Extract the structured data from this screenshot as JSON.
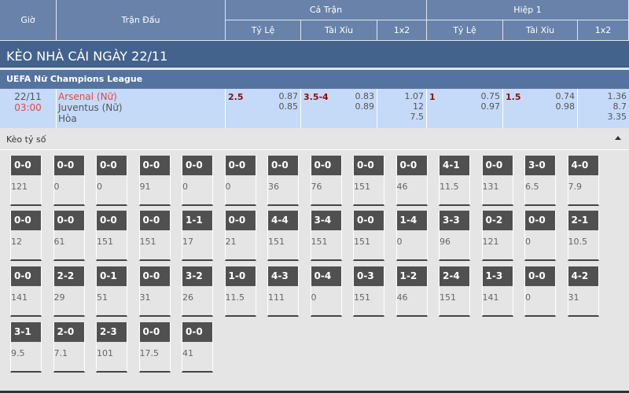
{
  "header": {
    "gio": "Giờ",
    "tran_dau": "Trận Đấu",
    "ca_tran": "Cả Trận",
    "hiep1": "Hiệp 1",
    "ty_le": "Tỷ Lệ",
    "tai_xiu": "Tài Xỉu",
    "x12": "1x2"
  },
  "banner": "KÈO NHÀ CÁI NGÀY 22/11",
  "league": "UEFA Nữ Champions League",
  "match": {
    "date": "22/11",
    "time": "03:00",
    "home": "Arsenal (Nữ)",
    "away": "Juventus (Nữ)",
    "draw": "Hòa",
    "ft_handicap": {
      "line": "2.5",
      "home": "0.87",
      "away": "0.85"
    },
    "ft_ou": {
      "line": "3.5-4",
      "over": "0.83",
      "under": "0.89"
    },
    "ft_1x2": {
      "home": "1.07",
      "away": "12",
      "draw": "7.5"
    },
    "h1_handicap": {
      "line": "1",
      "home": "0.75",
      "away": "0.97"
    },
    "h1_ou": {
      "line": "1.5",
      "over": "0.74",
      "under": "0.98"
    },
    "h1_1x2": {
      "home": "1.36",
      "away": "8.7",
      "draw": "3.35"
    }
  },
  "correct_score": {
    "label": "Kèo tỷ số",
    "items": [
      {
        "s": "0-0",
        "o": "121"
      },
      {
        "s": "0-0",
        "o": "0"
      },
      {
        "s": "0-0",
        "o": "0"
      },
      {
        "s": "0-0",
        "o": "91"
      },
      {
        "s": "0-0",
        "o": "0"
      },
      {
        "s": "0-0",
        "o": "0"
      },
      {
        "s": "0-0",
        "o": "36"
      },
      {
        "s": "0-0",
        "o": "76"
      },
      {
        "s": "0-0",
        "o": "151"
      },
      {
        "s": "0-0",
        "o": "46"
      },
      {
        "s": "4-1",
        "o": "11.5"
      },
      {
        "s": "0-0",
        "o": "131"
      },
      {
        "s": "3-0",
        "o": "6.5"
      },
      {
        "s": "4-0",
        "o": "7.9"
      },
      {
        "s": "0-0",
        "o": "12"
      },
      {
        "s": "0-0",
        "o": "61"
      },
      {
        "s": "0-0",
        "o": "151"
      },
      {
        "s": "0-0",
        "o": "151"
      },
      {
        "s": "1-1",
        "o": "17"
      },
      {
        "s": "0-0",
        "o": "21"
      },
      {
        "s": "4-4",
        "o": "151"
      },
      {
        "s": "3-4",
        "o": "151"
      },
      {
        "s": "0-0",
        "o": "151"
      },
      {
        "s": "1-4",
        "o": "0"
      },
      {
        "s": "3-3",
        "o": "96"
      },
      {
        "s": "0-2",
        "o": "121"
      },
      {
        "s": "0-0",
        "o": "0"
      },
      {
        "s": "2-1",
        "o": "10.5"
      },
      {
        "s": "0-0",
        "o": "141"
      },
      {
        "s": "2-2",
        "o": "29"
      },
      {
        "s": "0-1",
        "o": "51"
      },
      {
        "s": "0-0",
        "o": "31"
      },
      {
        "s": "3-2",
        "o": "26"
      },
      {
        "s": "1-0",
        "o": "11.5"
      },
      {
        "s": "4-3",
        "o": "111"
      },
      {
        "s": "0-4",
        "o": "0"
      },
      {
        "s": "0-3",
        "o": "151"
      },
      {
        "s": "1-2",
        "o": "46"
      },
      {
        "s": "2-4",
        "o": "151"
      },
      {
        "s": "1-3",
        "o": "141"
      },
      {
        "s": "0-0",
        "o": "0"
      },
      {
        "s": "4-2",
        "o": "31"
      },
      {
        "s": "3-1",
        "o": "9.5"
      },
      {
        "s": "2-0",
        "o": "7.1"
      },
      {
        "s": "2-3",
        "o": "101"
      },
      {
        "s": "0-0",
        "o": "17.5"
      },
      {
        "s": "0-0",
        "o": "41"
      }
    ]
  }
}
